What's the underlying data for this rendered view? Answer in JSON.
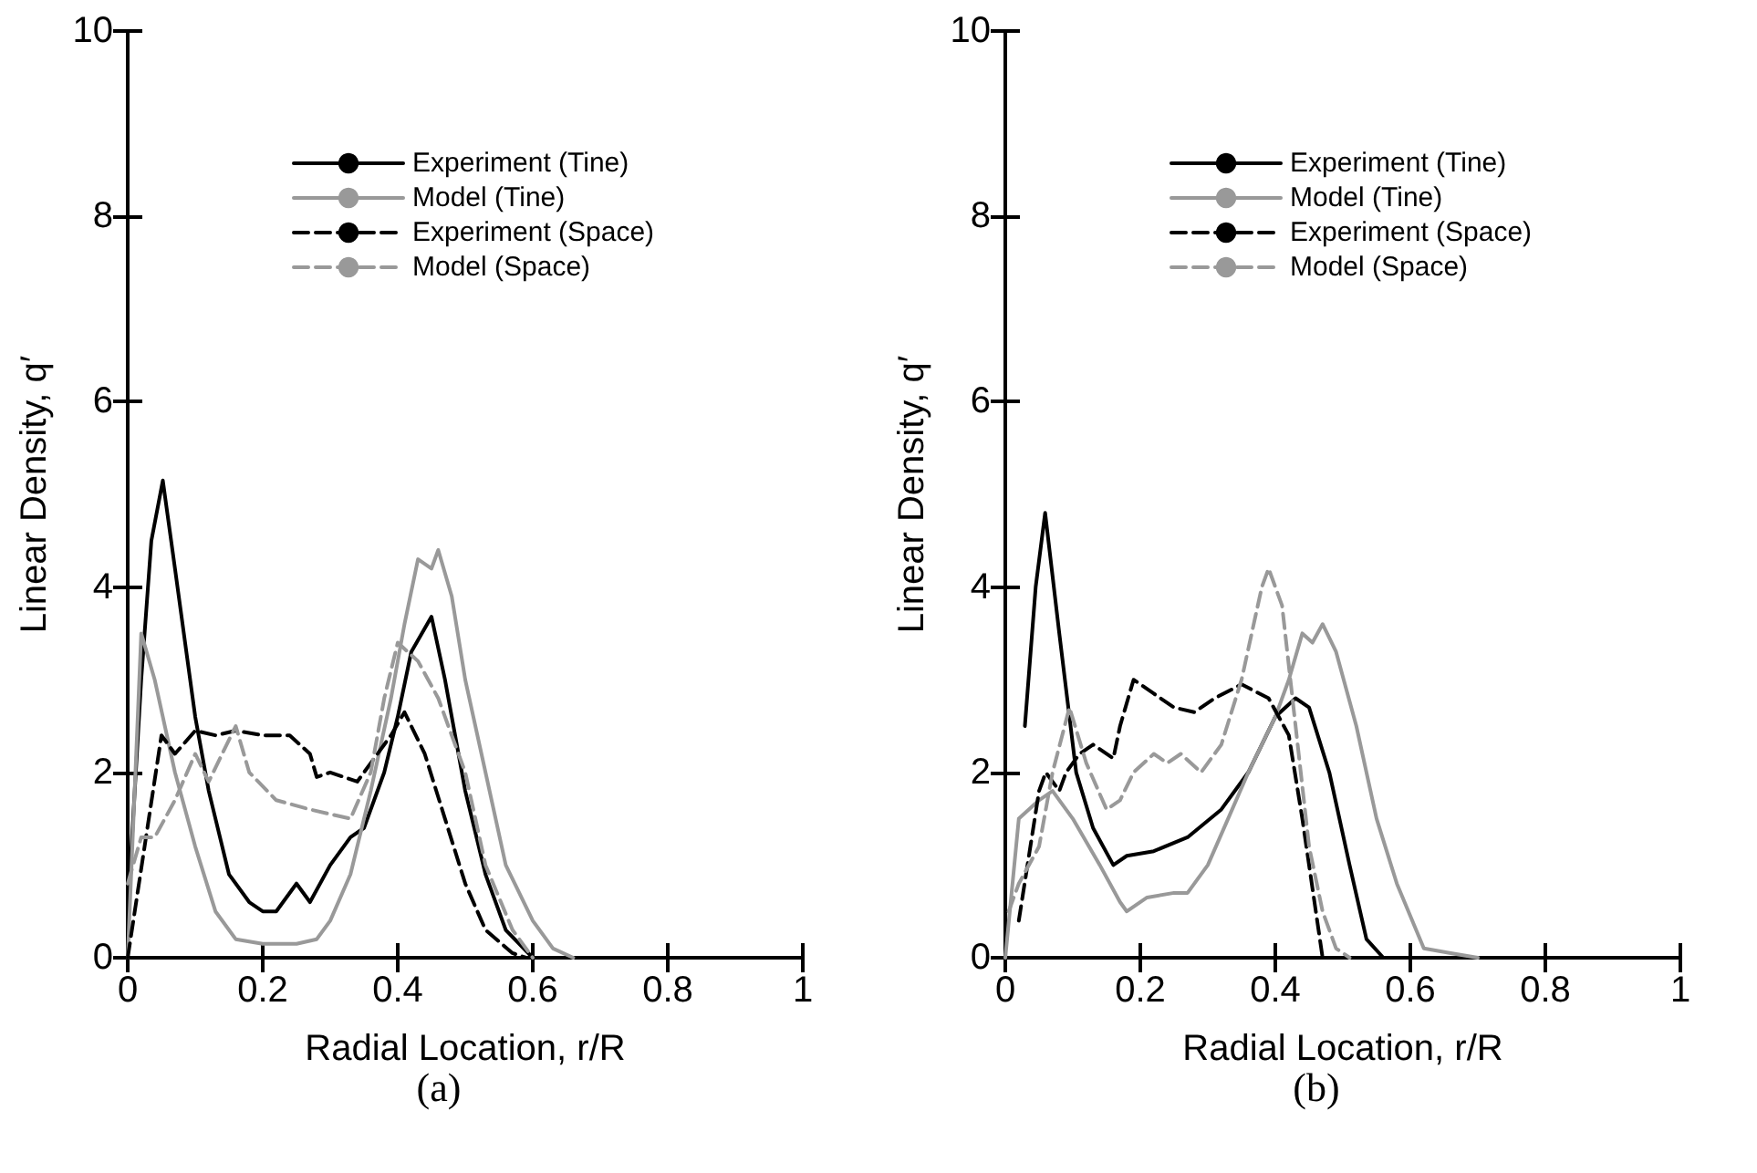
{
  "chart_data": [
    {
      "type": "line",
      "xlabel": "Radial Location, r/R",
      "ylabel": "Linear Density, q′",
      "annotations": [
        "(a)"
      ],
      "xlim": [
        0,
        1
      ],
      "xticks": [
        0,
        0.2,
        0.4,
        0.6,
        0.8,
        1
      ],
      "ylim": [
        0,
        10
      ],
      "yticks": [
        0,
        2,
        4,
        6,
        8,
        10
      ],
      "grid": false,
      "legend": "top",
      "marker": "none",
      "series": [
        {
          "name": "Experiment (Tine)",
          "color": "#000000",
          "line_style": "solid",
          "x": [
            0,
            0.02,
            0.035,
            0.052,
            0.07,
            0.1,
            0.12,
            0.15,
            0.18,
            0.2,
            0.22,
            0.25,
            0.27,
            0.3,
            0.33,
            0.35,
            0.38,
            0.4,
            0.42,
            0.45,
            0.47,
            0.5,
            0.53,
            0.56,
            0.6
          ],
          "values": [
            0.5,
            3.0,
            4.5,
            5.15,
            4.2,
            2.6,
            1.8,
            0.9,
            0.6,
            0.5,
            0.5,
            0.8,
            0.6,
            1.0,
            1.3,
            1.4,
            2.0,
            2.6,
            3.3,
            3.68,
            3.0,
            1.8,
            0.9,
            0.3,
            0
          ]
        },
        {
          "name": "Model (Tine)",
          "color": "#999999",
          "line_style": "solid",
          "x": [
            0,
            0.02,
            0.04,
            0.07,
            0.1,
            0.13,
            0.16,
            0.2,
            0.25,
            0.28,
            0.3,
            0.33,
            0.36,
            0.39,
            0.41,
            0.43,
            0.45,
            0.46,
            0.48,
            0.5,
            0.53,
            0.56,
            0.6,
            0.63,
            0.66
          ],
          "values": [
            0,
            3.5,
            3.0,
            2.0,
            1.2,
            0.5,
            0.2,
            0.15,
            0.15,
            0.2,
            0.4,
            0.9,
            1.8,
            2.8,
            3.6,
            4.3,
            4.2,
            4.4,
            3.9,
            3.0,
            2.0,
            1.0,
            0.4,
            0.1,
            0
          ]
        },
        {
          "name": "Experiment (Space)",
          "color": "#000000",
          "line_style": "dashed",
          "x": [
            0,
            0.05,
            0.07,
            0.1,
            0.13,
            0.16,
            0.2,
            0.24,
            0.27,
            0.28,
            0.3,
            0.34,
            0.37,
            0.39,
            0.41,
            0.44,
            0.47,
            0.5,
            0.53,
            0.57,
            0.59
          ],
          "values": [
            0,
            2.4,
            2.2,
            2.45,
            2.4,
            2.45,
            2.4,
            2.4,
            2.2,
            1.95,
            2.0,
            1.9,
            2.2,
            2.4,
            2.65,
            2.2,
            1.5,
            0.8,
            0.3,
            0.05,
            0
          ]
        },
        {
          "name": "Model (Space)",
          "color": "#999999",
          "line_style": "dashed",
          "x": [
            0,
            0.02,
            0.04,
            0.07,
            0.1,
            0.12,
            0.16,
            0.18,
            0.22,
            0.27,
            0.33,
            0.36,
            0.38,
            0.4,
            0.43,
            0.46,
            0.5,
            0.53,
            0.57,
            0.6
          ],
          "values": [
            0.8,
            1.3,
            1.3,
            1.7,
            2.2,
            1.9,
            2.5,
            2.0,
            1.7,
            1.6,
            1.5,
            2.0,
            2.8,
            3.4,
            3.2,
            2.8,
            2.0,
            1.0,
            0.3,
            0
          ]
        }
      ]
    },
    {
      "type": "line",
      "xlabel": "Radial Location, r/R",
      "ylabel": "Linear Density, q′",
      "annotations": [
        "(b)"
      ],
      "xlim": [
        0,
        1
      ],
      "xticks": [
        0,
        0.2,
        0.4,
        0.6,
        0.8,
        1
      ],
      "ylim": [
        0,
        10
      ],
      "yticks": [
        0,
        2,
        4,
        6,
        8,
        10
      ],
      "grid": false,
      "legend": "top",
      "marker": "none",
      "series": [
        {
          "name": "Experiment (Tine)",
          "color": "#000000",
          "line_style": "solid",
          "x": [
            0.029,
            0.045,
            0.059,
            0.08,
            0.105,
            0.13,
            0.16,
            0.18,
            0.22,
            0.27,
            0.32,
            0.36,
            0.4,
            0.43,
            0.45,
            0.48,
            0.51,
            0.535,
            0.56
          ],
          "values": [
            2.5,
            4.0,
            4.8,
            3.5,
            2.0,
            1.4,
            1.0,
            1.1,
            1.15,
            1.3,
            1.6,
            2.0,
            2.6,
            2.8,
            2.7,
            2.0,
            1.0,
            0.2,
            0
          ]
        },
        {
          "name": "Model (Tine)",
          "color": "#999999",
          "line_style": "solid",
          "x": [
            0,
            0.02,
            0.05,
            0.07,
            0.1,
            0.14,
            0.17,
            0.18,
            0.21,
            0.25,
            0.27,
            0.3,
            0.33,
            0.36,
            0.4,
            0.42,
            0.44,
            0.455,
            0.47,
            0.49,
            0.52,
            0.55,
            0.58,
            0.62,
            0.66,
            0.7
          ],
          "values": [
            0,
            1.5,
            1.7,
            1.8,
            1.5,
            1.0,
            0.6,
            0.5,
            0.65,
            0.7,
            0.7,
            1.0,
            1.5,
            2.0,
            2.6,
            3.0,
            3.5,
            3.4,
            3.6,
            3.3,
            2.5,
            1.5,
            0.8,
            0.1,
            0.05,
            0
          ]
        },
        {
          "name": "Experiment (Space)",
          "color": "#000000",
          "line_style": "dashed",
          "x": [
            0.02,
            0.05,
            0.06,
            0.08,
            0.09,
            0.11,
            0.13,
            0.16,
            0.17,
            0.19,
            0.22,
            0.25,
            0.28,
            0.31,
            0.35,
            0.39,
            0.42,
            0.44,
            0.46,
            0.47
          ],
          "values": [
            0.4,
            1.8,
            2.0,
            1.8,
            2.0,
            2.2,
            2.3,
            2.15,
            2.5,
            3.0,
            2.85,
            2.7,
            2.65,
            2.8,
            2.95,
            2.8,
            2.4,
            1.5,
            0.5,
            0
          ]
        },
        {
          "name": "Model (Space)",
          "color": "#999999",
          "line_style": "dashed",
          "x": [
            0.005,
            0.02,
            0.05,
            0.07,
            0.095,
            0.12,
            0.15,
            0.17,
            0.19,
            0.22,
            0.24,
            0.26,
            0.29,
            0.32,
            0.35,
            0.38,
            0.39,
            0.41,
            0.43,
            0.45,
            0.47,
            0.49,
            0.51
          ],
          "values": [
            0.5,
            0.8,
            1.2,
            2.0,
            2.7,
            2.1,
            1.6,
            1.7,
            2.0,
            2.2,
            2.1,
            2.2,
            2.0,
            2.3,
            3.0,
            4.0,
            4.2,
            3.8,
            2.5,
            1.2,
            0.5,
            0.1,
            0
          ]
        }
      ]
    }
  ]
}
